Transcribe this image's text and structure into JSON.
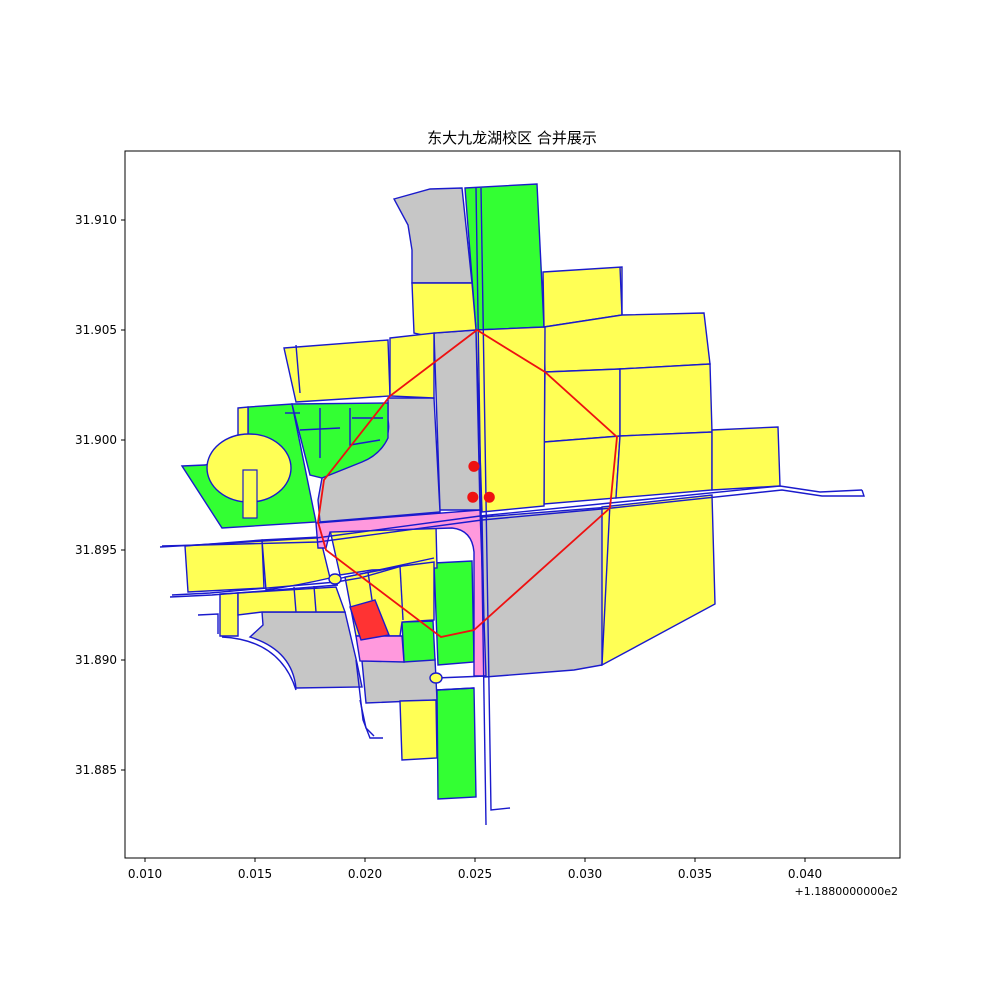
{
  "figure": {
    "title": "东大九龙湖校区 合并展示",
    "x_offset_text": "+1.1880000000e2"
  },
  "axes": {
    "x_ticks": [
      "0.010",
      "0.015",
      "0.020",
      "0.025",
      "0.030",
      "0.035",
      "0.040"
    ],
    "y_ticks": [
      "31.910",
      "31.905",
      "31.900",
      "31.895",
      "31.890",
      "31.885"
    ]
  },
  "colors": {
    "residential": "#ffff55",
    "green_space": "#33ff33",
    "building_grey": "#c6c6c6",
    "plaza_pink": "#ff99dd",
    "highlight_red": "#ff3333",
    "road_outline": "#1a1acc",
    "boundary": "#ee1111",
    "points": "#ee1111"
  },
  "legend_items": [],
  "points_of_interest": [
    {
      "lon_offset": 0.02495,
      "lat": 31.8988
    },
    {
      "lon_offset": 0.0249,
      "lat": 31.8974
    },
    {
      "lon_offset": 0.02565,
      "lat": 31.8974
    }
  ]
}
